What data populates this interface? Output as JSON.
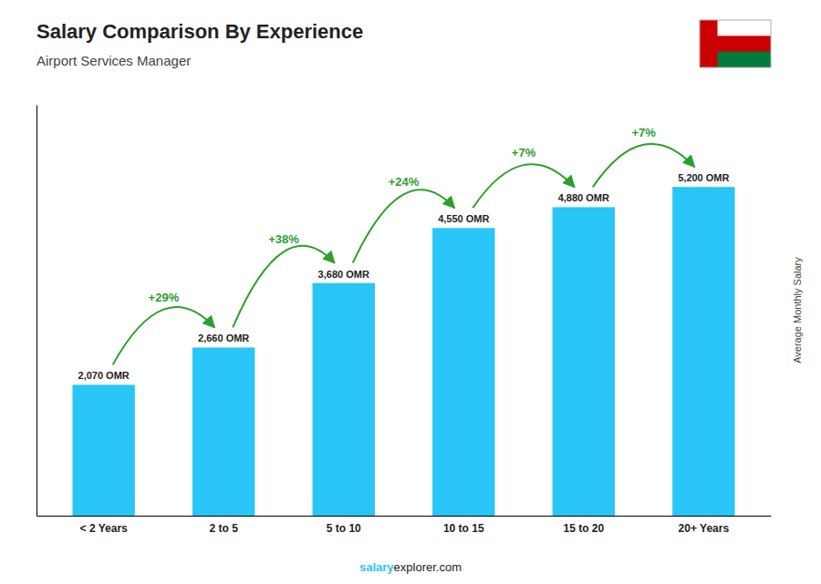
{
  "chart_data": {
    "type": "bar",
    "title": "Salary Comparison By Experience",
    "subtitle": "Airport Services Manager",
    "ylabel": "Average Monthly Salary",
    "categories": [
      "< 2 Years",
      "2 to 5",
      "5 to 10",
      "10 to 15",
      "15 to 20",
      "20+ Years"
    ],
    "values": [
      2070,
      2660,
      3680,
      4550,
      4880,
      5200
    ],
    "value_labels": [
      "2,070 OMR",
      "2,660 OMR",
      "3,680 OMR",
      "4,550 OMR",
      "4,880 OMR",
      "5,200 OMR"
    ],
    "data_labels": true,
    "annotations": [
      "+29%",
      "+38%",
      "+24%",
      "+7%",
      "+7%",
      "salary",
      "explorer.com"
    ],
    "color": "#29c5f6",
    "ylim": [
      0,
      6500
    ],
    "grid": false,
    "tick_labels": "x"
  }
}
